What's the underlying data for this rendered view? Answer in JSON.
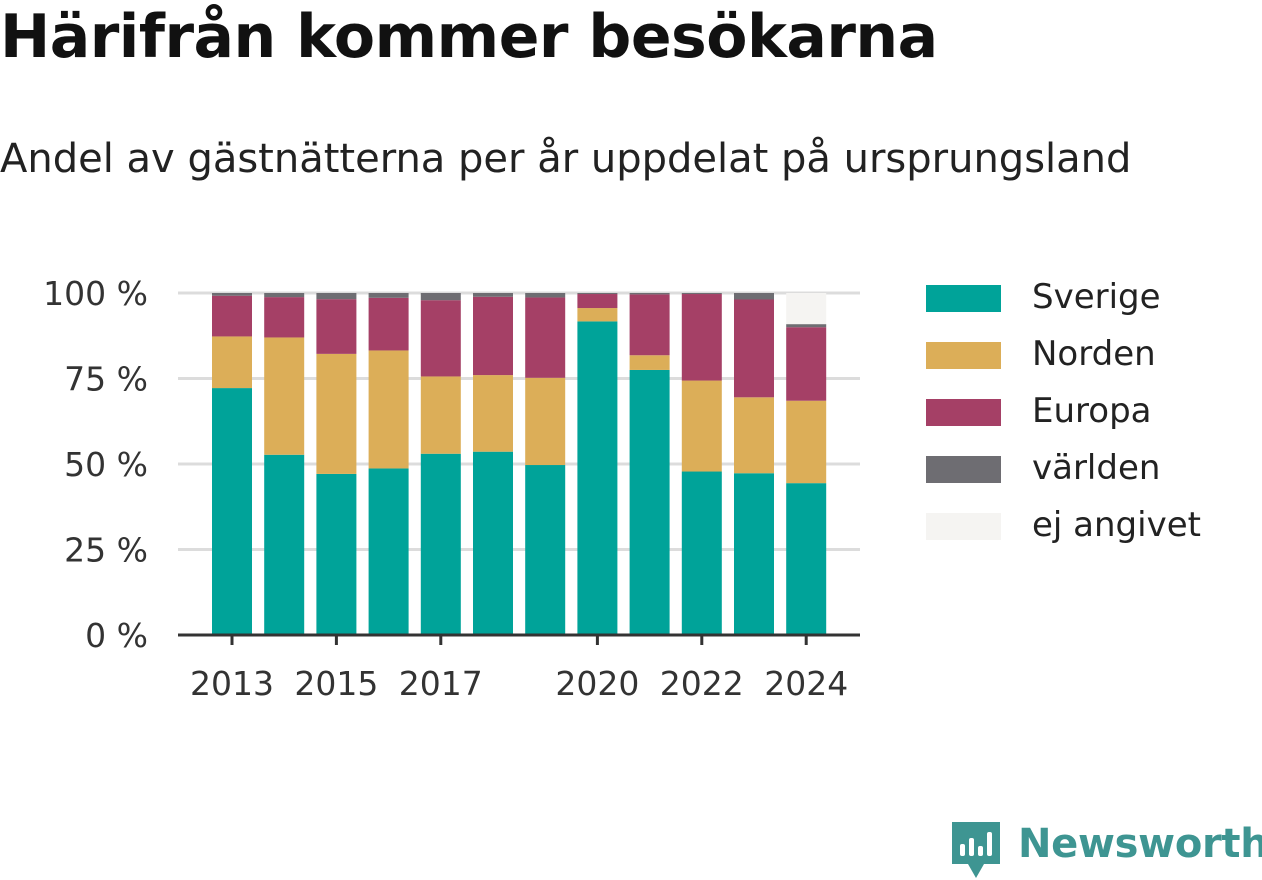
{
  "title": "Härifrån kommer besökarna",
  "subtitle": "Andel av gästnätterna per år uppdelat på ursprungsland",
  "brand": "Newsworthy",
  "legend": [
    {
      "label": "Sverige",
      "color": "#00a399"
    },
    {
      "label": "Norden",
      "color": "#dcae58"
    },
    {
      "label": "Europa",
      "color": "#a54066"
    },
    {
      "label": "världen",
      "color": "#6e6d72"
    },
    {
      "label": "ej angivet",
      "color": "#f5f4f2"
    }
  ],
  "chart_data": {
    "type": "bar",
    "stacked": true,
    "categories": [
      "2013",
      "2014",
      "2015",
      "2016",
      "2017",
      "2018",
      "2019",
      "2020",
      "2021",
      "2022",
      "2023",
      "2024"
    ],
    "x_tick_labels": [
      "2013",
      "",
      "2015",
      "",
      "2017",
      "",
      "",
      "2020",
      "",
      "2022",
      "",
      "2024"
    ],
    "y_tick_labels": [
      "0 %",
      "25 %",
      "50 %",
      "75 %",
      "100 %"
    ],
    "ylim": [
      0,
      100
    ],
    "grid": true,
    "legend_position": "right",
    "series": [
      {
        "name": "Sverige",
        "color": "#00a399",
        "values": [
          72.2,
          52.7,
          47.1,
          48.7,
          53.0,
          53.6,
          49.7,
          91.7,
          77.5,
          47.8,
          47.3,
          44.4
        ]
      },
      {
        "name": "Norden",
        "color": "#dcae58",
        "values": [
          15.1,
          34.3,
          35.1,
          34.5,
          22.6,
          22.4,
          25.5,
          3.9,
          4.3,
          26.6,
          22.2,
          24.1
        ]
      },
      {
        "name": "Europa",
        "color": "#a54066",
        "values": [
          11.9,
          11.8,
          16.0,
          15.4,
          22.3,
          22.9,
          23.5,
          4.1,
          17.8,
          25.3,
          28.6,
          21.5
        ]
      },
      {
        "name": "världen",
        "color": "#6e6d72",
        "values": [
          0.8,
          1.2,
          1.8,
          1.4,
          2.1,
          1.1,
          1.3,
          0.3,
          0.4,
          0.3,
          1.9,
          0.9
        ]
      },
      {
        "name": "ej angivet",
        "color": "#f5f4f2",
        "values": [
          0,
          0,
          0,
          0,
          0,
          0,
          0,
          0,
          0,
          0,
          0,
          9.1
        ]
      }
    ]
  }
}
